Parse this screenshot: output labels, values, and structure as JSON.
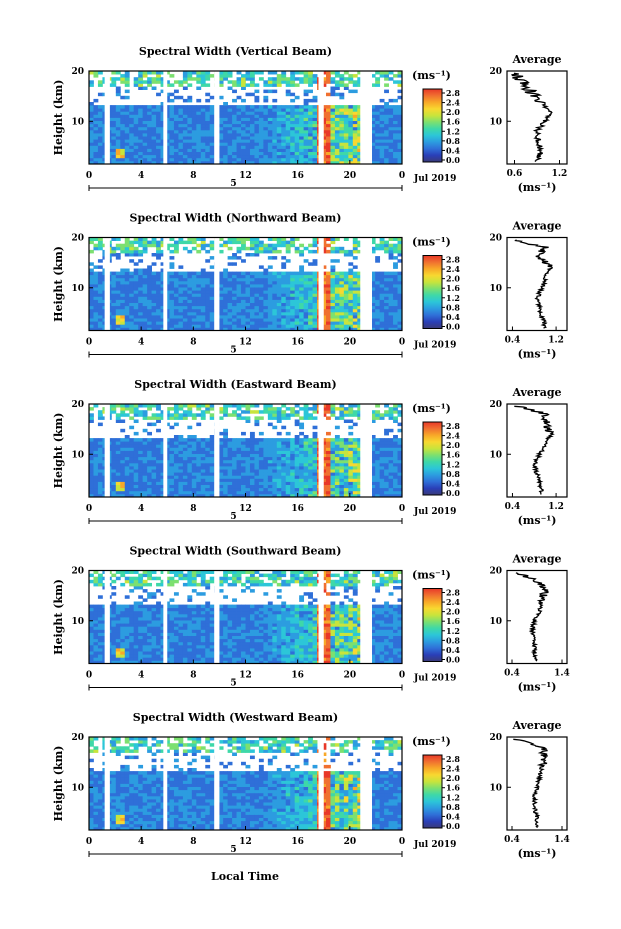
{
  "figure": {
    "xlabel": "Local Time",
    "colorbar_unit_label": "(ms⁻¹)",
    "colorbar_ticks": [
      "2.8",
      "2.4",
      "2.0",
      "1.6",
      "1.2",
      "0.8",
      "0.4",
      "0.0"
    ],
    "date_label": "Jul 2019",
    "day_label": "5",
    "avg_title": "Average",
    "avg_xlabel": "(ms⁻¹)"
  },
  "chart_data": [
    {
      "type": "heatmap",
      "title": "Spectral Width (Vertical Beam)",
      "ylabel": "Height (km)",
      "xticks": [
        "0",
        "4",
        "8",
        "12",
        "16",
        "20",
        "0"
      ],
      "yticks": [
        "10",
        "20"
      ],
      "xlim": [
        0,
        24
      ],
      "ylim": [
        1.5,
        20
      ],
      "clim": [
        0.0,
        3.0
      ],
      "data_gaps_hours": [
        [
          1.2,
          1.6
        ],
        [
          5.7,
          6.0
        ],
        [
          9.6,
          10.0
        ],
        [
          17.6,
          18.0
        ],
        [
          20.8,
          21.7
        ]
      ],
      "average_profile": {
        "xticks": [
          "0.6",
          "1.2"
        ],
        "xlim": [
          0.5,
          1.3
        ],
        "height": [
          2,
          4,
          6,
          8,
          10,
          12,
          14,
          16,
          18,
          19.5
        ],
        "value": [
          0.9,
          0.95,
          0.92,
          0.9,
          1.0,
          1.08,
          0.95,
          0.8,
          0.7,
          0.6
        ]
      }
    },
    {
      "type": "heatmap",
      "title": "Spectral Width (Northward Beam)",
      "ylabel": "Height (km)",
      "xticks": [
        "0",
        "4",
        "8",
        "12",
        "16",
        "20",
        "0"
      ],
      "yticks": [
        "10",
        "20"
      ],
      "xlim": [
        0,
        24
      ],
      "ylim": [
        1.5,
        20
      ],
      "clim": [
        0.0,
        3.0
      ],
      "data_gaps_hours": [
        [
          1.2,
          1.6
        ],
        [
          5.7,
          6.0
        ],
        [
          9.6,
          10.0
        ],
        [
          17.6,
          18.0
        ],
        [
          20.8,
          21.7
        ]
      ],
      "average_profile": {
        "xticks": [
          "0.4",
          "1.2"
        ],
        "xlim": [
          0.3,
          1.4
        ],
        "height": [
          2,
          4,
          6,
          8,
          10,
          12,
          14,
          16,
          18,
          19.5
        ],
        "value": [
          1.0,
          0.95,
          0.9,
          0.85,
          0.95,
          1.0,
          1.1,
          0.9,
          1.0,
          0.5
        ]
      }
    },
    {
      "type": "heatmap",
      "title": "Spectral Width (Eastward Beam)",
      "ylabel": "Height (km)",
      "xticks": [
        "0",
        "4",
        "8",
        "12",
        "16",
        "20",
        "0"
      ],
      "yticks": [
        "10",
        "20"
      ],
      "xlim": [
        0,
        24
      ],
      "ylim": [
        1.5,
        20
      ],
      "clim": [
        0.0,
        3.0
      ],
      "data_gaps_hours": [
        [
          1.2,
          1.6
        ],
        [
          5.7,
          6.0
        ],
        [
          9.6,
          10.0
        ],
        [
          17.6,
          18.0
        ],
        [
          20.8,
          21.7
        ]
      ],
      "average_profile": {
        "xticks": [
          "0.4",
          "1.2"
        ],
        "xlim": [
          0.3,
          1.4
        ],
        "height": [
          2,
          4,
          6,
          8,
          10,
          12,
          14,
          16,
          18,
          19.5
        ],
        "value": [
          0.95,
          0.9,
          0.85,
          0.8,
          0.9,
          1.0,
          1.1,
          1.0,
          1.0,
          0.5
        ]
      }
    },
    {
      "type": "heatmap",
      "title": "Spectral Width (Southward Beam)",
      "ylabel": "Height (km)",
      "xticks": [
        "0",
        "4",
        "8",
        "12",
        "16",
        "20",
        "0"
      ],
      "yticks": [
        "10",
        "20"
      ],
      "xlim": [
        0,
        24
      ],
      "ylim": [
        1.5,
        20
      ],
      "clim": [
        0.0,
        3.0
      ],
      "data_gaps_hours": [
        [
          1.2,
          1.6
        ],
        [
          5.7,
          6.0
        ],
        [
          9.6,
          10.0
        ],
        [
          17.6,
          18.0
        ],
        [
          20.8,
          21.7
        ]
      ],
      "average_profile": {
        "xticks": [
          "0.4",
          "1.4"
        ],
        "xlim": [
          0.3,
          1.5
        ],
        "height": [
          2,
          4,
          6,
          8,
          10,
          12,
          14,
          16,
          18,
          19.5
        ],
        "value": [
          0.9,
          0.85,
          0.85,
          0.8,
          0.85,
          0.95,
          1.0,
          1.05,
          0.9,
          0.5
        ]
      }
    },
    {
      "type": "heatmap",
      "title": "Spectral Width (Westward Beam)",
      "ylabel": "Height (km)",
      "xticks": [
        "0",
        "4",
        "8",
        "12",
        "16",
        "20",
        "0"
      ],
      "yticks": [
        "10",
        "20"
      ],
      "xlim": [
        0,
        24
      ],
      "ylim": [
        1.5,
        20
      ],
      "clim": [
        0.0,
        3.0
      ],
      "data_gaps_hours": [
        [
          1.2,
          1.6
        ],
        [
          5.7,
          6.0
        ],
        [
          9.6,
          10.0
        ],
        [
          17.6,
          18.0
        ],
        [
          20.8,
          21.7
        ]
      ],
      "average_profile": {
        "xticks": [
          "0.4",
          "1.4"
        ],
        "xlim": [
          0.3,
          1.5
        ],
        "height": [
          2,
          4,
          6,
          8,
          10,
          12,
          14,
          16,
          18,
          19.5
        ],
        "value": [
          0.9,
          0.9,
          0.85,
          0.85,
          0.9,
          0.95,
          1.0,
          1.05,
          1.0,
          0.5
        ]
      }
    }
  ],
  "colormap": [
    "#3a3a78",
    "#2a3fb8",
    "#2f6fd8",
    "#2c9ce0",
    "#2cc6d8",
    "#3ed8a8",
    "#7ce070",
    "#c8e43c",
    "#f8d830",
    "#f8a828",
    "#f07030",
    "#e83828"
  ]
}
